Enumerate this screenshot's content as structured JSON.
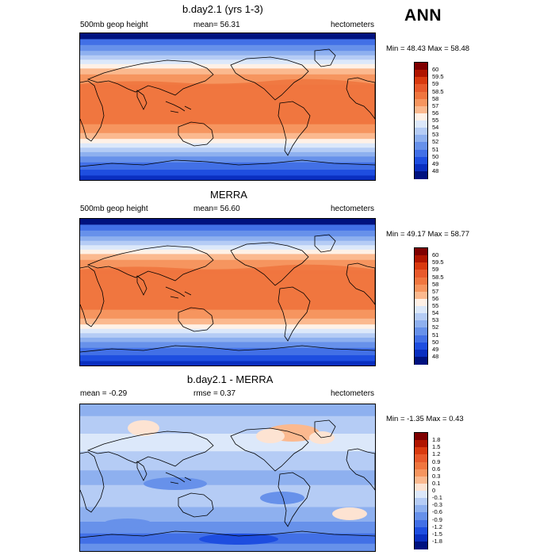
{
  "season_label": "ANN",
  "panels": [
    {
      "title": "b.day2.1 (yrs 1-3)",
      "left_label": "500mb geop height",
      "center_label": "mean=  56.31",
      "right_label": "hectometers",
      "minmax": "Min = 48.43 Max = 58.48",
      "colorbar": {
        "labels": [
          "60",
          "59.5",
          "59",
          "58.5",
          "58",
          "57",
          "56",
          "55",
          "54",
          "53",
          "52",
          "51",
          "50",
          "49",
          "48"
        ],
        "colors": [
          "#7f0000",
          "#b01500",
          "#d93a0f",
          "#e85a2c",
          "#f0763f",
          "#f6955f",
          "#fbb98f",
          "#fff1e6",
          "#dce8fa",
          "#b5ccf5",
          "#8eb0ef",
          "#6791ea",
          "#4270e6",
          "#1e4ee0",
          "#0a2fc0",
          "#00127f"
        ]
      },
      "field": "model"
    },
    {
      "title": "MERRA",
      "left_label": "500mb geop height",
      "center_label": "mean=  56.60",
      "right_label": "hectometers",
      "minmax": "Min = 49.17 Max = 58.77",
      "colorbar": {
        "labels": [
          "60",
          "59.5",
          "59",
          "58.5",
          "58",
          "57",
          "56",
          "55",
          "54",
          "53",
          "52",
          "51",
          "50",
          "49",
          "48"
        ],
        "colors": [
          "#7f0000",
          "#b01500",
          "#d93a0f",
          "#e85a2c",
          "#f0763f",
          "#f6955f",
          "#fbb98f",
          "#fff1e6",
          "#dce8fa",
          "#b5ccf5",
          "#8eb0ef",
          "#6791ea",
          "#4270e6",
          "#1e4ee0",
          "#0a2fc0",
          "#00127f"
        ]
      },
      "field": "obs"
    },
    {
      "title": "b.day2.1 - MERRA",
      "left_label": "mean =  -0.29",
      "center_label": "rmse =   0.37",
      "right_label": "hectometers",
      "minmax": "Min = -1.35 Max =   0.43",
      "colorbar": {
        "labels": [
          "1.8",
          "1.5",
          "1.2",
          "0.9",
          "0.6",
          "0.3",
          "0.1",
          "0",
          "-0.1",
          "-0.3",
          "-0.6",
          "-0.9",
          "-1.2",
          "-1.5",
          "-1.8"
        ],
        "colors": [
          "#7f0000",
          "#b01500",
          "#d93a0f",
          "#e85a2c",
          "#f0763f",
          "#f6955f",
          "#fbb98f",
          "#fde3d2",
          "#dce8fa",
          "#b5ccf5",
          "#8eb0ef",
          "#6791ea",
          "#4270e6",
          "#1e4ee0",
          "#0a2fc0",
          "#00127f"
        ]
      },
      "field": "diff"
    }
  ]
}
